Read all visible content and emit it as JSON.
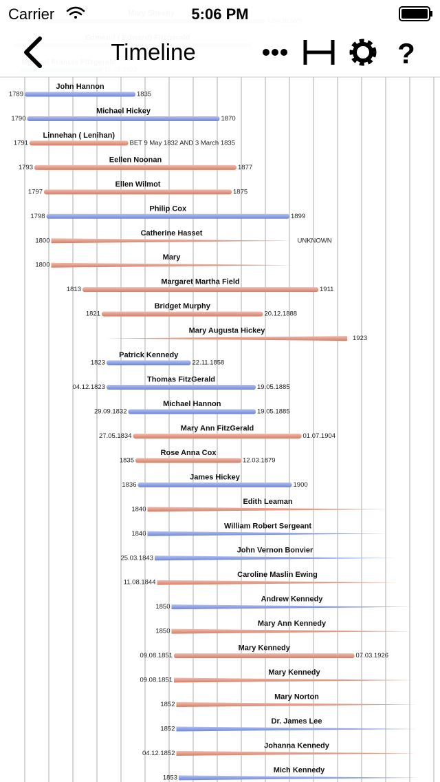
{
  "status_bar": {
    "carrier": "Carrier",
    "time": "5:06 PM"
  },
  "nav_bar": {
    "title": "Timeline",
    "help_icon": "?"
  },
  "hidden_rows": [
    {
      "name": "Mary Sheehy",
      "end": "UNKNOWN"
    },
    {
      "name": "Edmond ( Edward) Fitzgerald",
      "end": null
    },
    {
      "name": "Michael Francis Fitzgerald",
      "end": "15.01.1922"
    }
  ],
  "rows": [
    {
      "name": "John Hannon",
      "start": "1789",
      "end": "1835",
      "color": "blue"
    },
    {
      "name": "Michael Hickey",
      "start": "1790",
      "end": "1870",
      "color": "blue"
    },
    {
      "name": "Linnehan ( Lenihan)",
      "start": "1791",
      "end": "BET 9 May 1832 AND 3 March 1835",
      "color": "pink"
    },
    {
      "name": "Eellen Noonan",
      "start": "1793",
      "end": "1877",
      "color": "pink"
    },
    {
      "name": "Ellen Wilmot",
      "start": "1797",
      "end": "1875",
      "color": "pink"
    },
    {
      "name": "Philip Cox",
      "start": "1798",
      "end": "1899",
      "color": "blue"
    },
    {
      "name": "Catherine Hasset",
      "start": "1800",
      "end": "UNKNOWN",
      "color": "pink"
    },
    {
      "name": "Mary",
      "start": "1800",
      "end": null,
      "color": "pink"
    },
    {
      "name": "Margaret Martha Field",
      "start": "1813",
      "end": "1911",
      "color": "pink"
    },
    {
      "name": "Bridget Murphy",
      "start": "1821",
      "end": "20.12.1888",
      "color": "pink"
    },
    {
      "name": "Mary Augusta Hickey",
      "start": null,
      "end": "1923",
      "color": "pink"
    },
    {
      "name": "Patrick Kennedy",
      "start": "1823",
      "end": "22.11.1858",
      "color": "blue"
    },
    {
      "name": "Thomas FitzGerald",
      "start": "04.12.1823",
      "end": "19.05.1885",
      "color": "blue"
    },
    {
      "name": "Michael Hannon",
      "start": "29.09.1832",
      "end": "19.05.1885",
      "color": "blue"
    },
    {
      "name": "Mary Ann FitzGerald",
      "start": "27.05.1834",
      "end": "01.07.1904",
      "color": "pink"
    },
    {
      "name": "Rose Anna Cox",
      "start": "1835",
      "end": "12.03.1879",
      "color": "pink"
    },
    {
      "name": "James Hickey",
      "start": "1836",
      "end": "1900",
      "color": "blue"
    },
    {
      "name": "Edith Leaman",
      "start": "1840",
      "end": null,
      "color": "pink"
    },
    {
      "name": "William Robert Sergeant",
      "start": "1840",
      "end": null,
      "color": "blue"
    },
    {
      "name": "John Vernon Bonvier",
      "start": "25.03.1843",
      "end": null,
      "color": "blue"
    },
    {
      "name": "Caroline Maslin Ewing",
      "start": "11.08.1844",
      "end": null,
      "color": "pink"
    },
    {
      "name": "Andrew Kennedy",
      "start": "1850",
      "end": null,
      "color": "blue"
    },
    {
      "name": "Mary Ann Kennedy",
      "start": "1850",
      "end": null,
      "color": "pink"
    },
    {
      "name": "Mary Kennedy",
      "start": "09.08.1851",
      "end": "07.03.1926",
      "color": "pink"
    },
    {
      "name": "Mary Kennedy",
      "start": "09.08.1851",
      "end": null,
      "color": "pink"
    },
    {
      "name": "Mary Norton",
      "start": "1852",
      "end": null,
      "color": "pink"
    },
    {
      "name": "Dr. James Lee",
      "start": "1852",
      "end": null,
      "color": "blue"
    },
    {
      "name": "Johanna Kennedy",
      "start": "04.12.1852",
      "end": null,
      "color": "pink"
    },
    {
      "name": "Mich Kennedy",
      "start": "1853",
      "end": null,
      "color": "blue"
    }
  ]
}
